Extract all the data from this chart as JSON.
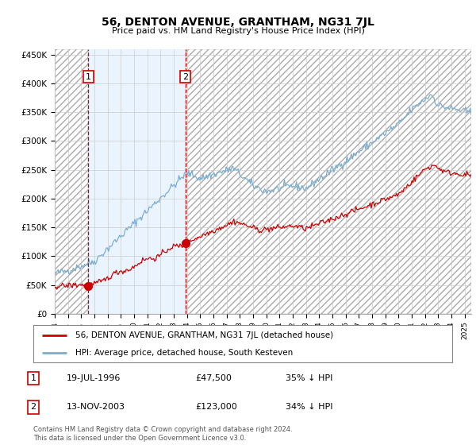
{
  "title": "56, DENTON AVENUE, GRANTHAM, NG31 7JL",
  "subtitle": "Price paid vs. HM Land Registry's House Price Index (HPI)",
  "ylabel_ticks": [
    "£0",
    "£50K",
    "£100K",
    "£150K",
    "£200K",
    "£250K",
    "£300K",
    "£350K",
    "£400K",
    "£450K"
  ],
  "ylim": [
    0,
    460000
  ],
  "xlim_start": 1994.0,
  "xlim_end": 2025.5,
  "xtick_years": [
    1994,
    1995,
    1996,
    1997,
    1998,
    1999,
    2000,
    2001,
    2002,
    2003,
    2004,
    2005,
    2006,
    2007,
    2008,
    2009,
    2010,
    2011,
    2012,
    2013,
    2014,
    2015,
    2016,
    2017,
    2018,
    2019,
    2020,
    2021,
    2022,
    2023,
    2024,
    2025
  ],
  "sale1_x": 1996.54,
  "sale1_y": 47500,
  "sale1_label": "1",
  "sale2_x": 2003.87,
  "sale2_y": 123000,
  "sale2_label": "2",
  "red_line_color": "#cc0000",
  "blue_line_color": "#7aadcf",
  "grid_color": "#cccccc",
  "bg_color": "#ffffff",
  "annotation_box_color": "#cc0000",
  "footer_text": "Contains HM Land Registry data © Crown copyright and database right 2024.\nThis data is licensed under the Open Government Licence v3.0.",
  "legend_line1": "56, DENTON AVENUE, GRANTHAM, NG31 7JL (detached house)",
  "legend_line2": "HPI: Average price, detached house, South Kesteven",
  "table_row1": [
    "1",
    "19-JUL-1996",
    "£47,500",
    "35% ↓ HPI"
  ],
  "table_row2": [
    "2",
    "13-NOV-2003",
    "£123,000",
    "34% ↓ HPI"
  ]
}
